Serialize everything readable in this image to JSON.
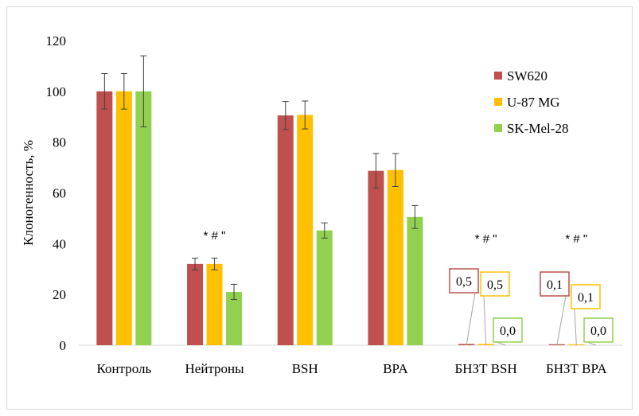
{
  "chart_data": {
    "type": "bar",
    "title": "",
    "xlabel": "",
    "ylabel": "Клоногенность, %",
    "ylim": [
      0,
      120
    ],
    "yticks": [
      "0",
      "20",
      "40",
      "60",
      "80",
      "100",
      "120"
    ],
    "grid": false,
    "legend_position": "top-right",
    "categories": [
      "Контроль",
      "Нейтроны",
      "BSH",
      "BPA",
      "БНЗТ BSH",
      "БНЗТ BPA"
    ],
    "series": [
      {
        "name": "SW620",
        "color": "#c0504d",
        "values": [
          100,
          32,
          90.5,
          68.7,
          0.5,
          0.1
        ],
        "errors": [
          7,
          2.3,
          5.5,
          6.8,
          0,
          0
        ]
      },
      {
        "name": "U-87 MG",
        "color": "#ffc000",
        "values": [
          100,
          32,
          90.7,
          69,
          0.5,
          0.1
        ],
        "errors": [
          7,
          2.3,
          5.5,
          6.5,
          0,
          0
        ]
      },
      {
        "name": "SK-Mel-28",
        "color": "#92d050",
        "values": [
          100,
          21,
          45.2,
          50.5,
          0.0,
          0.0
        ],
        "errors": [
          14,
          3,
          3,
          4.5,
          0,
          0
        ]
      }
    ],
    "significance": [
      "",
      "* # \"",
      "",
      "",
      "* # \"",
      "* # \""
    ],
    "callouts": [
      {
        "category": 4,
        "series": 0,
        "text": "0,5"
      },
      {
        "category": 4,
        "series": 1,
        "text": "0,5"
      },
      {
        "category": 4,
        "series": 2,
        "text": "0,0"
      },
      {
        "category": 5,
        "series": 0,
        "text": "0,1"
      },
      {
        "category": 5,
        "series": 1,
        "text": "0,1"
      },
      {
        "category": 5,
        "series": 2,
        "text": "0,0"
      }
    ]
  }
}
